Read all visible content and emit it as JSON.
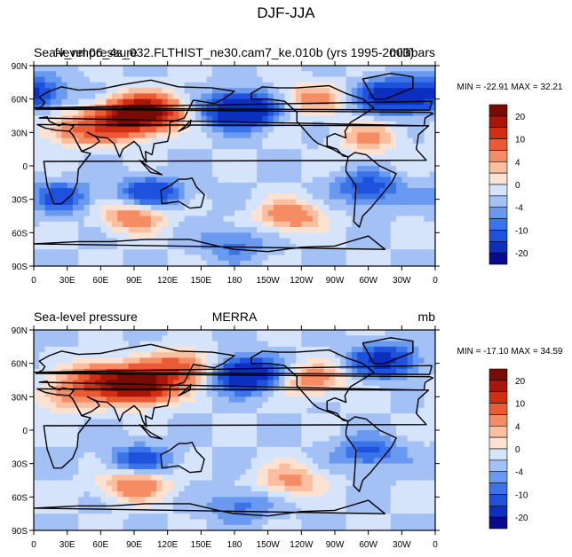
{
  "chart_data": [
    {
      "type": "heatmap",
      "figure_title": "DJF-JJA",
      "title_left": "Sea-level pressure",
      "title_center": "fv_nm06_4s_032.FLTHIST_ne30.cam7_ke.010b (yrs 1995-2003)",
      "title_right": "millibars",
      "min_max": "MIN = -22.91  MAX =  32.21",
      "min": -22.91,
      "max": 32.21,
      "x_ticks": [
        "0",
        "30E",
        "60E",
        "90E",
        "120E",
        "150E",
        "180",
        "150W",
        "120W",
        "90W",
        "60W",
        "30W",
        "0"
      ],
      "y_ticks": [
        "90N",
        "60N",
        "30N",
        "0",
        "30S",
        "60S",
        "90S"
      ],
      "xlim": [
        0,
        360
      ],
      "ylim": [
        -90,
        90
      ],
      "colorbar_labels": [
        "20",
        "10",
        "4",
        "0",
        "-4",
        "-10",
        "-20"
      ],
      "anomalies": [
        {
          "lon": 100,
          "lat": 48,
          "value": 30
        },
        {
          "lon": 75,
          "lat": 38,
          "value": 16
        },
        {
          "lon": 35,
          "lat": 32,
          "value": 8
        },
        {
          "lon": 185,
          "lat": 50,
          "value": -20
        },
        {
          "lon": 320,
          "lat": 62,
          "value": -14
        },
        {
          "lon": 358,
          "lat": 65,
          "value": -10
        },
        {
          "lon": 105,
          "lat": -25,
          "value": -10
        },
        {
          "lon": 25,
          "lat": -28,
          "value": -7
        },
        {
          "lon": 300,
          "lat": -20,
          "value": -8
        },
        {
          "lon": 90,
          "lat": -45,
          "value": 9
        },
        {
          "lon": 230,
          "lat": -45,
          "value": 9
        },
        {
          "lon": 300,
          "lat": 25,
          "value": 6
        },
        {
          "lon": 250,
          "lat": 60,
          "value": 7
        },
        {
          "lon": 180,
          "lat": -70,
          "value": -5
        }
      ]
    },
    {
      "type": "heatmap",
      "title_left": "Sea-level pressure",
      "title_center": "MERRA",
      "title_right": "mb",
      "min_max": "MIN = -17.10  MAX =  34.59",
      "min": -17.1,
      "max": 34.59,
      "x_ticks": [
        "0",
        "30E",
        "60E",
        "90E",
        "120E",
        "150E",
        "180",
        "150W",
        "120W",
        "90W",
        "60W",
        "30W",
        "0"
      ],
      "y_ticks": [
        "90N",
        "60N",
        "30N",
        "0",
        "30S",
        "60S",
        "90S"
      ],
      "xlim": [
        0,
        360
      ],
      "ylim": [
        -90,
        90
      ],
      "colorbar_labels": [
        "20",
        "10",
        "4",
        "0",
        "-4",
        "-10",
        "-20"
      ],
      "anomalies": [
        {
          "lon": 95,
          "lat": 40,
          "value": 30
        },
        {
          "lon": 60,
          "lat": 45,
          "value": 16
        },
        {
          "lon": 130,
          "lat": 55,
          "value": 14
        },
        {
          "lon": 30,
          "lat": 30,
          "value": 7
        },
        {
          "lon": 190,
          "lat": 50,
          "value": -17
        },
        {
          "lon": 315,
          "lat": 62,
          "value": -12
        },
        {
          "lon": 95,
          "lat": -28,
          "value": -8
        },
        {
          "lon": 300,
          "lat": -20,
          "value": -7
        },
        {
          "lon": 90,
          "lat": -48,
          "value": 10
        },
        {
          "lon": 230,
          "lat": -45,
          "value": 7
        },
        {
          "lon": 250,
          "lat": 45,
          "value": 8
        },
        {
          "lon": 185,
          "lat": -68,
          "value": -5
        }
      ]
    }
  ]
}
